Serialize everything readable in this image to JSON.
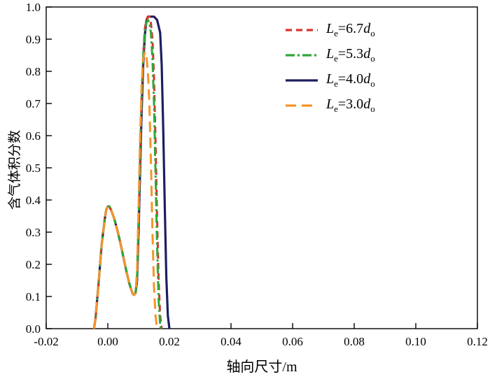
{
  "chart_data": {
    "type": "line",
    "title": "",
    "xlabel": "轴向尺寸/m",
    "ylabel": "含气体积分数",
    "xlim": [
      -0.02,
      0.12
    ],
    "ylim": [
      0.0,
      1.0
    ],
    "xticks": [
      -0.02,
      0,
      0.02,
      0.04,
      0.06,
      0.08,
      0.1,
      0.12
    ],
    "xtick_labels": [
      "-0.02",
      "0.00",
      "0.02",
      "0.04",
      "0.06",
      "0.08",
      "0.10",
      "0.12"
    ],
    "yticks": [
      0,
      0.1,
      0.2,
      0.3,
      0.4,
      0.5,
      0.6,
      0.7,
      0.8,
      0.9,
      1.0
    ],
    "ytick_labels": [
      "0.0",
      "0.1",
      "0.2",
      "0.3",
      "0.4",
      "0.5",
      "0.6",
      "0.7",
      "0.8",
      "0.9",
      "1.0"
    ],
    "grid": false,
    "legend_position": "upper-right",
    "axis_color": "#000000",
    "draw_order": [
      2,
      0,
      1,
      3
    ],
    "series": [
      {
        "name": "Le=6.7do",
        "label": {
          "sym": "L",
          "sym_sub": "e",
          "eq": "=",
          "val": "6.7",
          "unit": "d",
          "unit_sub": "o"
        },
        "color": "#d9322e",
        "dash": "9 6",
        "width": 3,
        "x": [
          -0.0045,
          -0.004,
          -0.003,
          -0.002,
          -0.001,
          -0.0005,
          0,
          0.0005,
          0.001,
          0.002,
          0.003,
          0.004,
          0.005,
          0.006,
          0.007,
          0.008,
          0.0085,
          0.009,
          0.0095,
          0.01,
          0.0105,
          0.011,
          0.0115,
          0.012,
          0.0125,
          0.013,
          0.0135,
          0.014,
          0.0145,
          0.015,
          0.0155,
          0.016,
          0.0165,
          0.017,
          0.0175
        ],
        "y": [
          0,
          0.03,
          0.14,
          0.26,
          0.34,
          0.37,
          0.38,
          0.38,
          0.37,
          0.345,
          0.31,
          0.27,
          0.225,
          0.18,
          0.14,
          0.11,
          0.105,
          0.11,
          0.16,
          0.33,
          0.54,
          0.72,
          0.85,
          0.93,
          0.96,
          0.97,
          0.97,
          0.95,
          0.9,
          0.78,
          0.58,
          0.35,
          0.15,
          0.04,
          0
        ]
      },
      {
        "name": "Le=5.3do",
        "label": {
          "sym": "L",
          "sym_sub": "e",
          "eq": "=",
          "val": "5.3",
          "unit": "d",
          "unit_sub": "o"
        },
        "color": "#2fa838",
        "dash": "13 4 3 4",
        "width": 3,
        "x": [
          -0.0045,
          -0.004,
          -0.003,
          -0.002,
          -0.001,
          -0.0005,
          0,
          0.0005,
          0.001,
          0.002,
          0.003,
          0.004,
          0.005,
          0.006,
          0.007,
          0.008,
          0.0085,
          0.009,
          0.0095,
          0.01,
          0.0105,
          0.011,
          0.0115,
          0.012,
          0.0125,
          0.013,
          0.0135,
          0.014,
          0.0145,
          0.015,
          0.0155,
          0.016,
          0.0165,
          0.017,
          0.0172
        ],
        "y": [
          0,
          0.03,
          0.14,
          0.26,
          0.34,
          0.37,
          0.38,
          0.38,
          0.37,
          0.345,
          0.31,
          0.27,
          0.225,
          0.18,
          0.14,
          0.11,
          0.105,
          0.11,
          0.16,
          0.34,
          0.56,
          0.73,
          0.85,
          0.92,
          0.95,
          0.96,
          0.95,
          0.92,
          0.84,
          0.7,
          0.48,
          0.26,
          0.09,
          0.01,
          0
        ]
      },
      {
        "name": "Le=4.0do",
        "label": {
          "sym": "L",
          "sym_sub": "e",
          "eq": "=",
          "val": "4.0",
          "unit": "d",
          "unit_sub": "o"
        },
        "color": "#1e1e5f",
        "dash": "",
        "width": 3.2,
        "x": [
          -0.0045,
          -0.004,
          -0.003,
          -0.002,
          -0.001,
          -0.0005,
          0,
          0.0005,
          0.001,
          0.002,
          0.003,
          0.004,
          0.005,
          0.006,
          0.007,
          0.008,
          0.0085,
          0.009,
          0.0095,
          0.01,
          0.0105,
          0.011,
          0.0115,
          0.012,
          0.0125,
          0.013,
          0.014,
          0.015,
          0.016,
          0.017,
          0.0175,
          0.018,
          0.0185,
          0.019,
          0.0195,
          0.02
        ],
        "y": [
          0,
          0.03,
          0.14,
          0.26,
          0.34,
          0.37,
          0.38,
          0.38,
          0.37,
          0.345,
          0.31,
          0.27,
          0.225,
          0.18,
          0.14,
          0.11,
          0.105,
          0.11,
          0.15,
          0.3,
          0.5,
          0.68,
          0.82,
          0.91,
          0.955,
          0.97,
          0.97,
          0.97,
          0.96,
          0.92,
          0.82,
          0.62,
          0.38,
          0.16,
          0.04,
          0
        ]
      },
      {
        "name": "Le=3.0do",
        "label": {
          "sym": "L",
          "sym_sub": "e",
          "eq": "=",
          "val": "3.0",
          "unit": "d",
          "unit_sub": "o"
        },
        "color": "#f59427",
        "dash": "15 8",
        "width": 3,
        "x": [
          -0.0045,
          -0.004,
          -0.003,
          -0.002,
          -0.001,
          -0.0005,
          0,
          0.0005,
          0.001,
          0.002,
          0.003,
          0.004,
          0.005,
          0.006,
          0.007,
          0.008,
          0.0085,
          0.009,
          0.0095,
          0.01,
          0.0105,
          0.011,
          0.0115,
          0.012,
          0.0125,
          0.013,
          0.0135,
          0.014,
          0.0145,
          0.015,
          0.0155,
          0.016
        ],
        "y": [
          0,
          0.03,
          0.14,
          0.26,
          0.34,
          0.37,
          0.38,
          0.38,
          0.37,
          0.345,
          0.31,
          0.27,
          0.225,
          0.18,
          0.14,
          0.11,
          0.105,
          0.11,
          0.18,
          0.38,
          0.6,
          0.76,
          0.84,
          0.86,
          0.85,
          0.8,
          0.7,
          0.52,
          0.3,
          0.13,
          0.04,
          0
        ]
      }
    ]
  }
}
